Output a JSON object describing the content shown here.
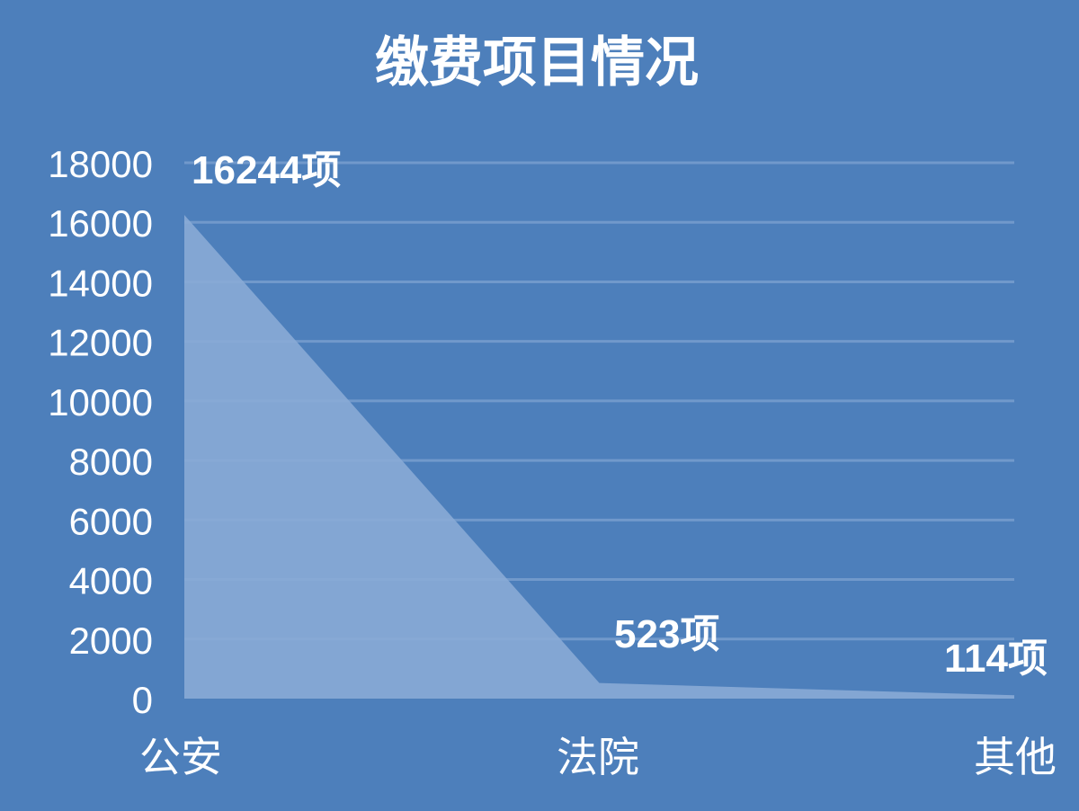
{
  "chart_data": {
    "type": "area",
    "title": "缴费项目情况",
    "categories": [
      "公安",
      "法院",
      "其他"
    ],
    "values": [
      16244,
      523,
      114
    ],
    "data_labels": [
      "16244项",
      "523项",
      "114项"
    ],
    "yticks": [
      0,
      2000,
      4000,
      6000,
      8000,
      10000,
      12000,
      14000,
      16000,
      18000
    ],
    "ylim": [
      0,
      18000
    ],
    "grid": true,
    "colors": {
      "background": "#4d7fbb",
      "area": "#8aabd6",
      "grid": "#7199cb",
      "text": "#ffffff"
    }
  }
}
